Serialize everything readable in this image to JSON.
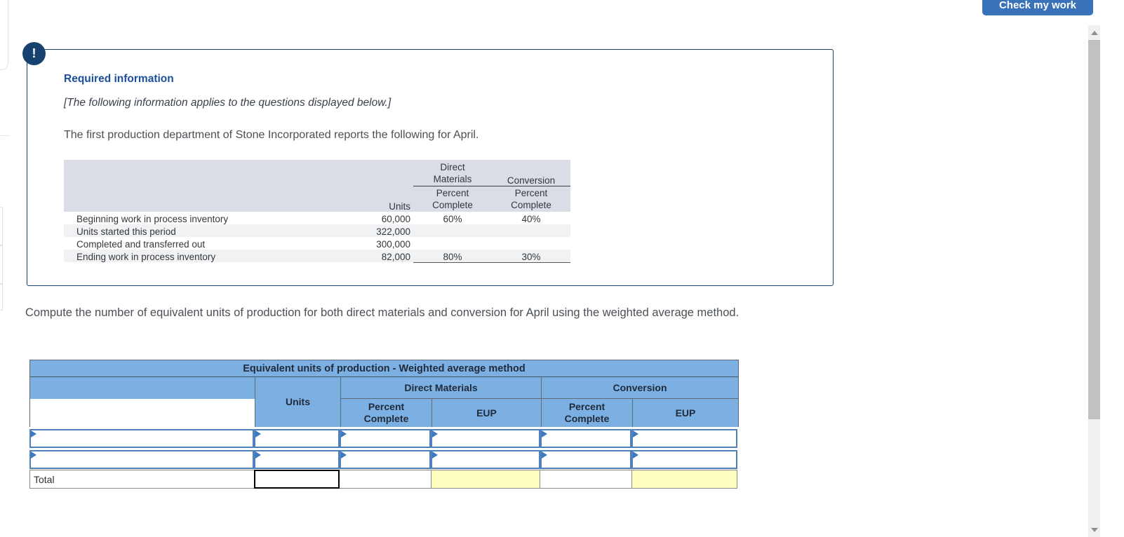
{
  "toolbar": {
    "check_my_work_label": "Check my work"
  },
  "required_info": {
    "alert_glyph": "!",
    "title": "Required information",
    "subtitle": "[The following information applies to the questions displayed below.]",
    "intro": "The first production department of Stone Incorporated reports the following for April.",
    "table": {
      "col_groups": {
        "direct_materials": "Direct Materials",
        "conversion": "Conversion"
      },
      "headers": {
        "units": "Units",
        "percent_complete": "Percent Complete"
      },
      "rows": [
        {
          "label": "Beginning work in process inventory",
          "units": "60,000",
          "dm_pct": "60%",
          "conv_pct": "40%"
        },
        {
          "label": "Units started this period",
          "units": "322,000",
          "dm_pct": "",
          "conv_pct": ""
        },
        {
          "label": "Completed and transferred out",
          "units": "300,000",
          "dm_pct": "",
          "conv_pct": ""
        },
        {
          "label": "Ending work in process inventory",
          "units": "82,000",
          "dm_pct": "80%",
          "conv_pct": "30%"
        }
      ]
    }
  },
  "question": {
    "prompt": "Compute the number of equivalent units of production for both direct materials and conversion for April using the weighted average method."
  },
  "answer_table": {
    "title": "Equivalent units of production - Weighted average method",
    "headers": {
      "units": "Units",
      "direct_materials": "Direct Materials",
      "conversion": "Conversion",
      "percent_complete": "Percent Complete",
      "eup": "EUP"
    },
    "total_label": "Total",
    "input_row_count": 2
  },
  "colors": {
    "navy": "#17416e",
    "heading_blue": "#1b4f9c",
    "button_blue": "#3a72ba",
    "table_header_blue": "#7db0e2",
    "input_border_blue": "#4f81bd",
    "flag_blue": "#3c79c0",
    "calc_yellow": "#ffffc1",
    "given_header_gray": "#dadde6",
    "stripe_gray": "#f1f2f4"
  }
}
